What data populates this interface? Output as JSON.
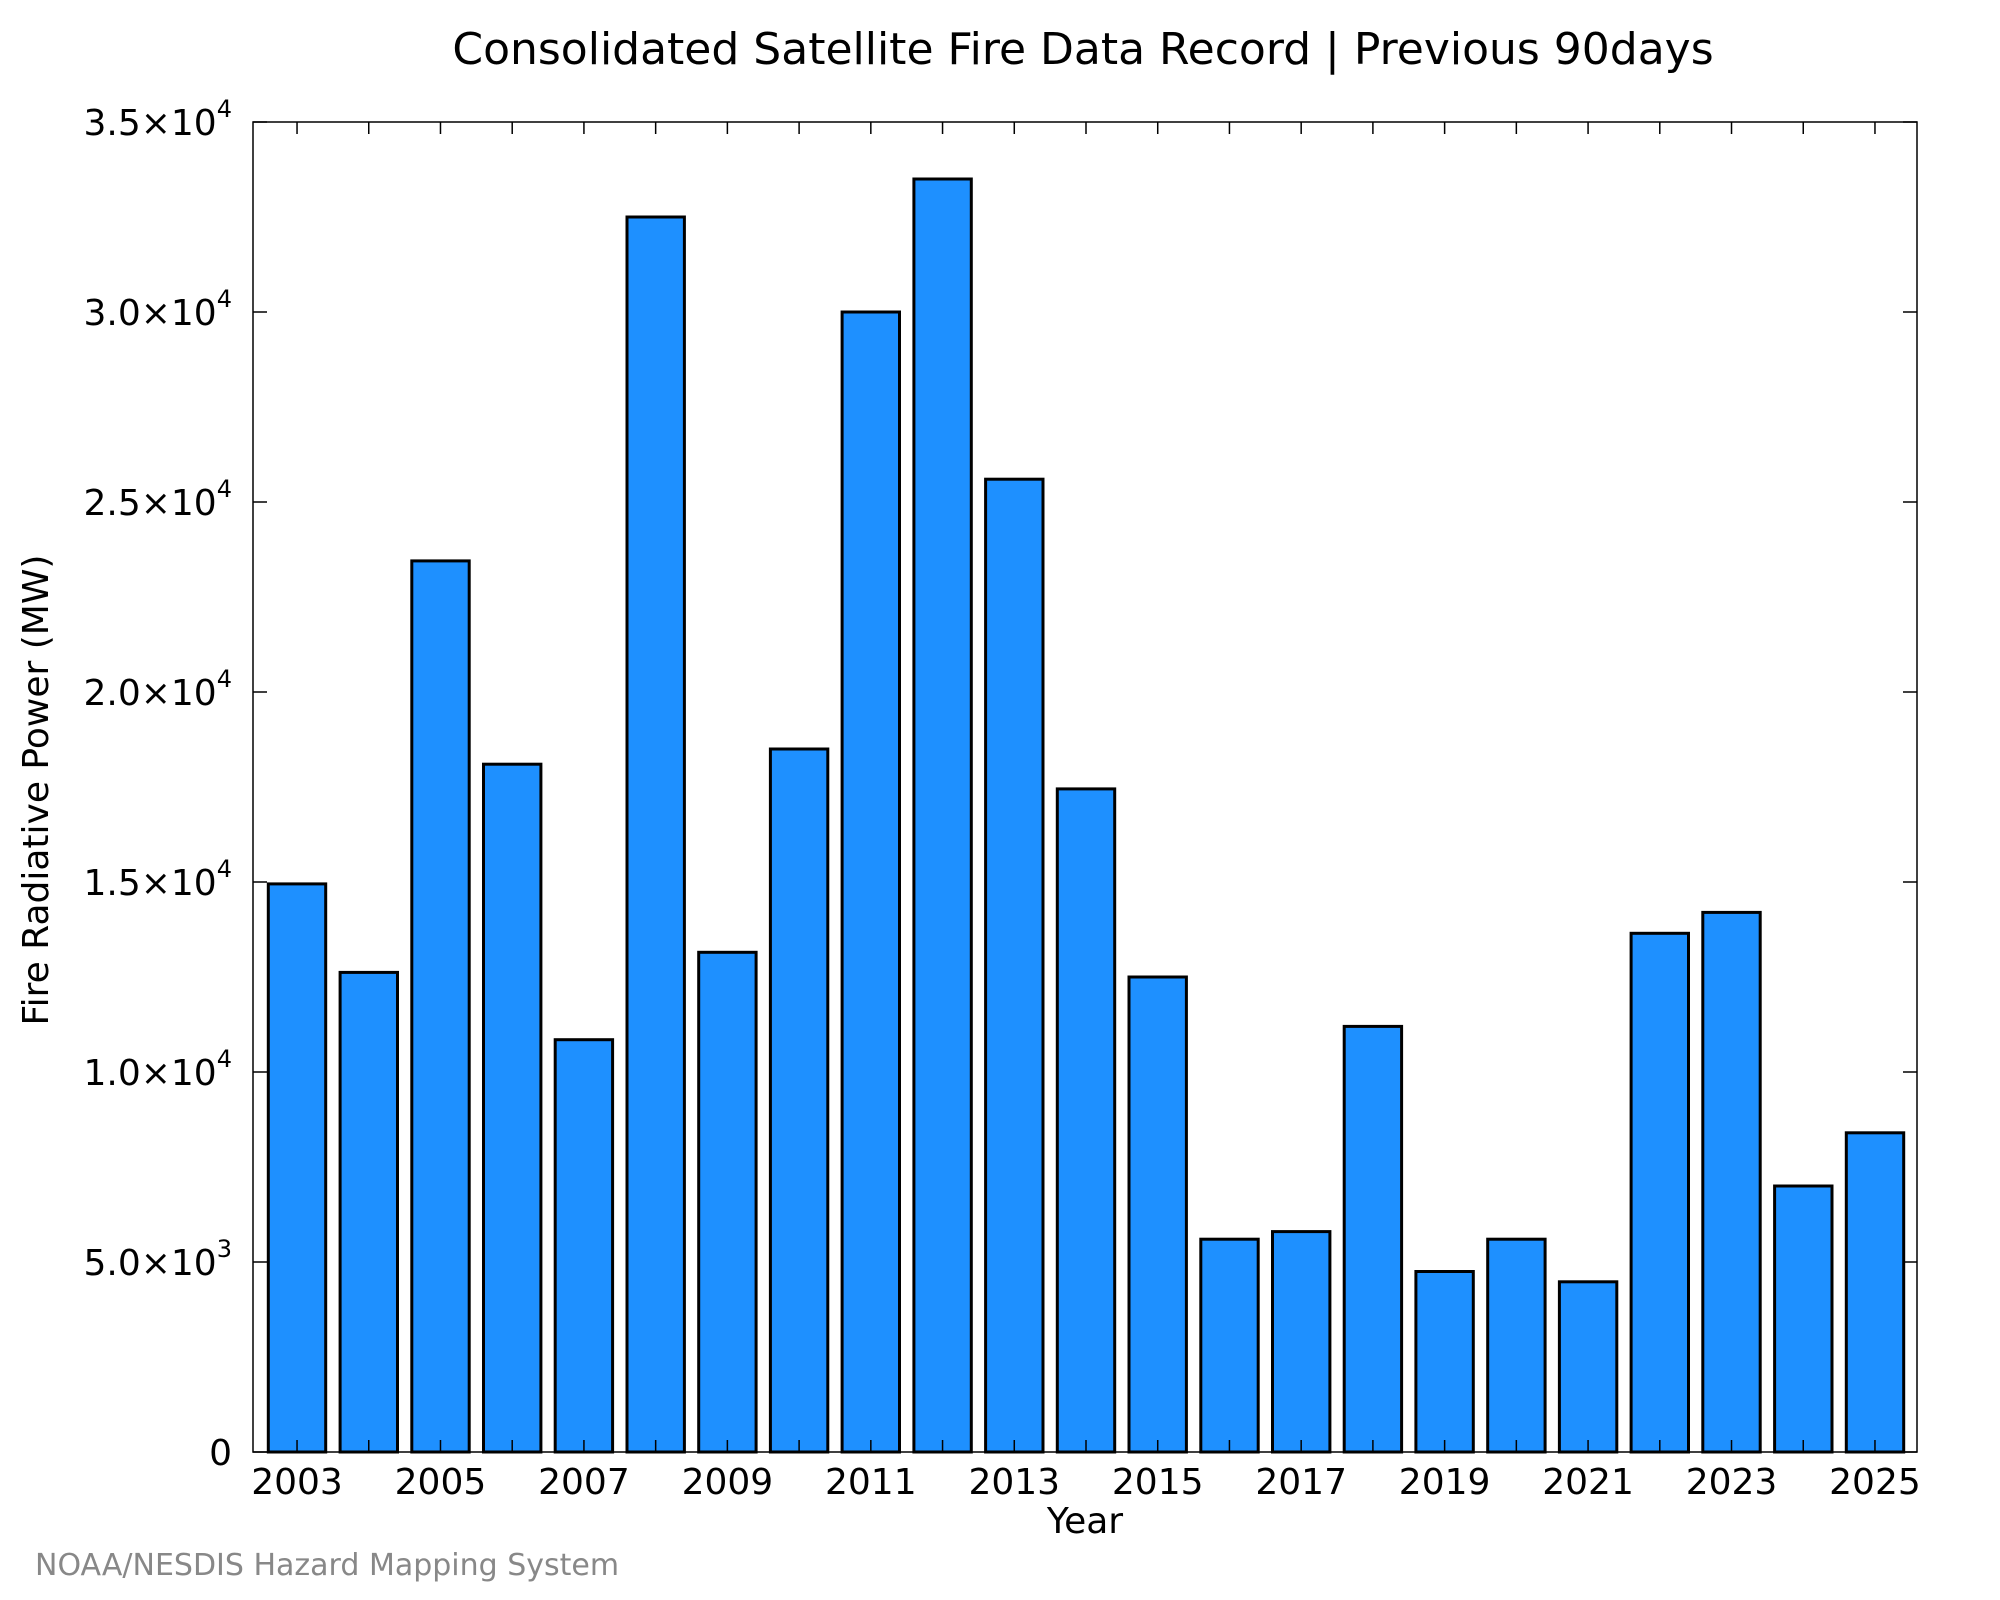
{
  "chart_data": {
    "type": "bar",
    "title": "Consolidated Satellite Fire Data Record | Previous 90days",
    "xlabel": "Year",
    "ylabel": "Fire Radiative Power (MW)",
    "categories": [
      "2003",
      "2004",
      "2005",
      "2006",
      "2007",
      "2008",
      "2009",
      "2010",
      "2011",
      "2012",
      "2013",
      "2014",
      "2015",
      "2016",
      "2017",
      "2018",
      "2019",
      "2020",
      "2021",
      "2022",
      "2023",
      "2024",
      "2025"
    ],
    "x_tick_labels": [
      "2003",
      "2005",
      "2007",
      "2009",
      "2011",
      "2013",
      "2015",
      "2017",
      "2019",
      "2021",
      "2023",
      "2025"
    ],
    "values": [
      14950,
      12620,
      23450,
      18100,
      10850,
      32500,
      13150,
      18500,
      30000,
      33500,
      25600,
      17450,
      12500,
      5600,
      5800,
      11200,
      4750,
      5600,
      4480,
      13650,
      14200,
      7000,
      8400
    ],
    "ylim": [
      0,
      35000
    ],
    "y_ticks": [
      {
        "value": 0,
        "mantissa": "0",
        "exponent": ""
      },
      {
        "value": 5000,
        "mantissa": "5.0×10",
        "exponent": "3"
      },
      {
        "value": 10000,
        "mantissa": "1.0×10",
        "exponent": "4"
      },
      {
        "value": 15000,
        "mantissa": "1.5×10",
        "exponent": "4"
      },
      {
        "value": 20000,
        "mantissa": "2.0×10",
        "exponent": "4"
      },
      {
        "value": 25000,
        "mantissa": "2.5×10",
        "exponent": "4"
      },
      {
        "value": 30000,
        "mantissa": "3.0×10",
        "exponent": "4"
      },
      {
        "value": 35000,
        "mantissa": "3.5×10",
        "exponent": "4"
      }
    ],
    "grid": false,
    "bar_color": "#1e90ff",
    "bar_edge_color": "#000000"
  },
  "footer": {
    "credit": "NOAA/NESDIS Hazard Mapping System"
  }
}
